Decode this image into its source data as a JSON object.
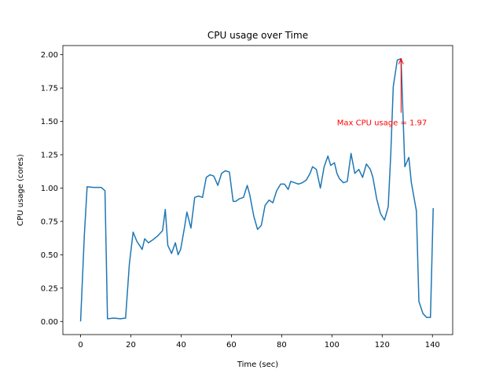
{
  "chart_data": {
    "type": "line",
    "title": "CPU usage over Time",
    "x_label": "Time (sec)",
    "y_label": "CPU usage (cores)",
    "x": [
      0,
      1.5,
      2.6,
      5.1,
      7.1,
      8.2,
      9.7,
      10.7,
      13.3,
      15.8,
      17.9,
      19.4,
      20.9,
      22.4,
      24.5,
      25.5,
      27,
      28.6,
      30.6,
      32.6,
      33.7,
      34.7,
      36.2,
      37.7,
      38.8,
      39.8,
      41.3,
      42.3,
      43.9,
      45.4,
      46.9,
      48.5,
      50,
      51.5,
      53,
      54.6,
      56.1,
      57.6,
      59.2,
      60.7,
      61.7,
      63.2,
      64.8,
      66.3,
      67.3,
      68.9,
      70.4,
      71.9,
      73.4,
      75,
      76.5,
      78,
      79.6,
      81.1,
      82.6,
      83.6,
      85.2,
      86.7,
      88.2,
      89.8,
      91.3,
      92.3,
      93.8,
      95.4,
      96.9,
      98.4,
      99.5,
      101,
      102,
      103,
      104.6,
      106.1,
      107.6,
      109.1,
      110.7,
      112.2,
      113.7,
      115.3,
      116.3,
      117.8,
      119.3,
      120.9,
      122.4,
      123.4,
      124.4,
      126,
      127.5,
      129,
      130.6,
      131.6,
      133.6,
      134.6,
      136.2,
      137.7,
      139.2,
      140.3
    ],
    "series": [
      {
        "color": "#1f77b4",
        "values": [
          0,
          0.65,
          1.01,
          1.005,
          1.005,
          1.005,
          0.98,
          0.02,
          0.025,
          0.02,
          0.025,
          0.43,
          0.67,
          0.6,
          0.54,
          0.62,
          0.59,
          0.61,
          0.64,
          0.68,
          0.84,
          0.57,
          0.51,
          0.59,
          0.5,
          0.54,
          0.7,
          0.82,
          0.7,
          0.93,
          0.94,
          0.93,
          1.08,
          1.1,
          1.09,
          1.02,
          1.11,
          1.13,
          1.12,
          0.9,
          0.9,
          0.92,
          0.93,
          1.02,
          0.95,
          0.79,
          0.69,
          0.72,
          0.87,
          0.91,
          0.89,
          0.98,
          1.03,
          1.03,
          0.99,
          1.05,
          1.04,
          1.03,
          1.04,
          1.06,
          1.11,
          1.16,
          1.14,
          1.0,
          1.16,
          1.24,
          1.17,
          1.19,
          1.11,
          1.07,
          1.04,
          1.05,
          1.26,
          1.11,
          1.14,
          1.08,
          1.18,
          1.14,
          1.08,
          0.92,
          0.81,
          0.76,
          0.86,
          1.25,
          1.76,
          1.96,
          1.97,
          1.16,
          1.23,
          1.04,
          0.83,
          0.15,
          0.06,
          0.03,
          0.03,
          0.85
        ]
      }
    ],
    "xlim": [
      -7.05,
      148.05
    ],
    "xticks": [
      0,
      20,
      40,
      60,
      80,
      100,
      120,
      140
    ],
    "ylim": [
      -0.0985,
      2.0685
    ],
    "yticks": [
      {
        "value": 0,
        "label": "0.00"
      },
      {
        "value": 0.25,
        "label": "0.25"
      },
      {
        "value": 0.5,
        "label": "0.50"
      },
      {
        "value": 0.75,
        "label": "0.75"
      },
      {
        "value": 1,
        "label": "1.00"
      },
      {
        "value": 1.25,
        "label": "1.25"
      },
      {
        "value": 1.5,
        "label": "1.50"
      },
      {
        "value": 1.75,
        "label": "1.75"
      },
      {
        "value": 2,
        "label": "2.00"
      }
    ],
    "annotation": {
      "text": "Max CPU usage = 1.97",
      "x": 127.5,
      "y": 1.97,
      "text_x": 102,
      "text_y": 1.47,
      "color": "red"
    }
  }
}
